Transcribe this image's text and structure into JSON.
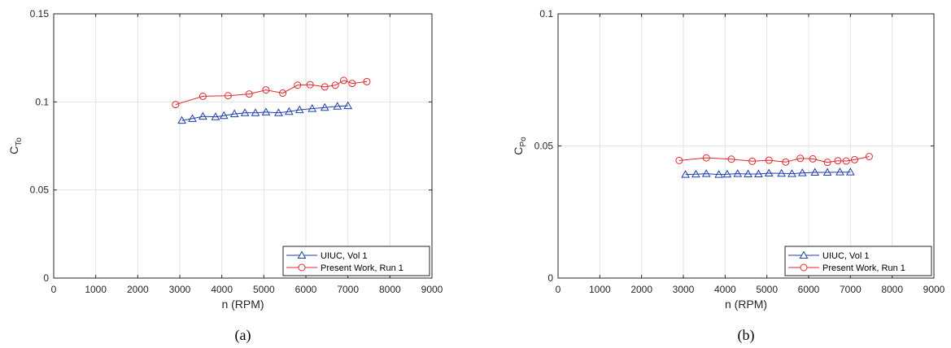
{
  "colors": {
    "uiuc": "#1f3fa8",
    "present": "#e0282e",
    "grid": "#e3e3e3",
    "axis": "#262626"
  },
  "chart_data": [
    {
      "type": "line",
      "caption": "(a)",
      "xlabel": "n (RPM)",
      "ylabel_main": "C",
      "ylabel_sub": "To",
      "xlim": [
        0,
        9000
      ],
      "ylim": [
        0,
        0.15
      ],
      "xticks": [
        0,
        1000,
        2000,
        3000,
        4000,
        5000,
        6000,
        7000,
        8000,
        9000
      ],
      "xtick_labels": [
        "0",
        "1000",
        "2000",
        "3000",
        "4000",
        "5000",
        "6000",
        "7000",
        "8000",
        "9000"
      ],
      "yticks": [
        0,
        0.05,
        0.1,
        0.15
      ],
      "ytick_labels": [
        "0",
        "0.05",
        "0.1",
        "0.15"
      ],
      "grid": true,
      "legend_position": "bottom-right",
      "series": [
        {
          "name": "UIUC, Vol 1",
          "marker": "triangle",
          "color": "#1f3fa8",
          "x": [
            3050,
            3300,
            3550,
            3850,
            4050,
            4300,
            4550,
            4800,
            5050,
            5350,
            5600,
            5850,
            6150,
            6450,
            6750,
            7000
          ],
          "y": [
            0.0895,
            0.0905,
            0.0918,
            0.0915,
            0.0922,
            0.0932,
            0.0938,
            0.0938,
            0.0942,
            0.0938,
            0.0945,
            0.0955,
            0.0962,
            0.0968,
            0.0975,
            0.0978
          ]
        },
        {
          "name": "Present Work, Run 1",
          "marker": "circle",
          "color": "#e0282e",
          "x": [
            2900,
            3550,
            4150,
            4650,
            5050,
            5450,
            5800,
            6100,
            6450,
            6700,
            6900,
            7100,
            7450
          ],
          "y": [
            0.0985,
            0.1032,
            0.1035,
            0.1045,
            0.1068,
            0.105,
            0.1095,
            0.1098,
            0.1085,
            0.1095,
            0.1122,
            0.1105,
            0.1115
          ]
        }
      ]
    },
    {
      "type": "line",
      "caption": "(b)",
      "xlabel": "n (RPM)",
      "ylabel_main": "C",
      "ylabel_sub": "Po",
      "xlim": [
        0,
        9000
      ],
      "ylim": [
        0,
        0.1
      ],
      "xticks": [
        0,
        1000,
        2000,
        3000,
        4000,
        5000,
        6000,
        7000,
        8000,
        9000
      ],
      "xtick_labels": [
        "0",
        "1000",
        "2000",
        "3000",
        "4000",
        "5000",
        "6000",
        "7000",
        "8000",
        "9000"
      ],
      "yticks": [
        0,
        0.05,
        0.1
      ],
      "ytick_labels": [
        "0",
        "0.05",
        "0.1"
      ],
      "grid": true,
      "legend_position": "bottom-right",
      "series": [
        {
          "name": "UIUC, Vol 1",
          "marker": "triangle",
          "color": "#1f3fa8",
          "x": [
            3050,
            3300,
            3550,
            3850,
            4050,
            4300,
            4550,
            4800,
            5050,
            5350,
            5600,
            5850,
            6150,
            6450,
            6750,
            7000
          ],
          "y": [
            0.0392,
            0.0393,
            0.0395,
            0.0392,
            0.0393,
            0.0395,
            0.0394,
            0.0394,
            0.0397,
            0.0396,
            0.0395,
            0.0398,
            0.04,
            0.04,
            0.0401,
            0.0401
          ]
        },
        {
          "name": "Present Work, Run 1",
          "marker": "circle",
          "color": "#e0282e",
          "x": [
            2900,
            3550,
            4150,
            4650,
            5050,
            5450,
            5800,
            6100,
            6450,
            6700,
            6900,
            7100,
            7450
          ],
          "y": [
            0.0445,
            0.0455,
            0.045,
            0.0442,
            0.0446,
            0.0439,
            0.0453,
            0.0451,
            0.0438,
            0.0444,
            0.0443,
            0.0448,
            0.046
          ]
        }
      ]
    }
  ]
}
